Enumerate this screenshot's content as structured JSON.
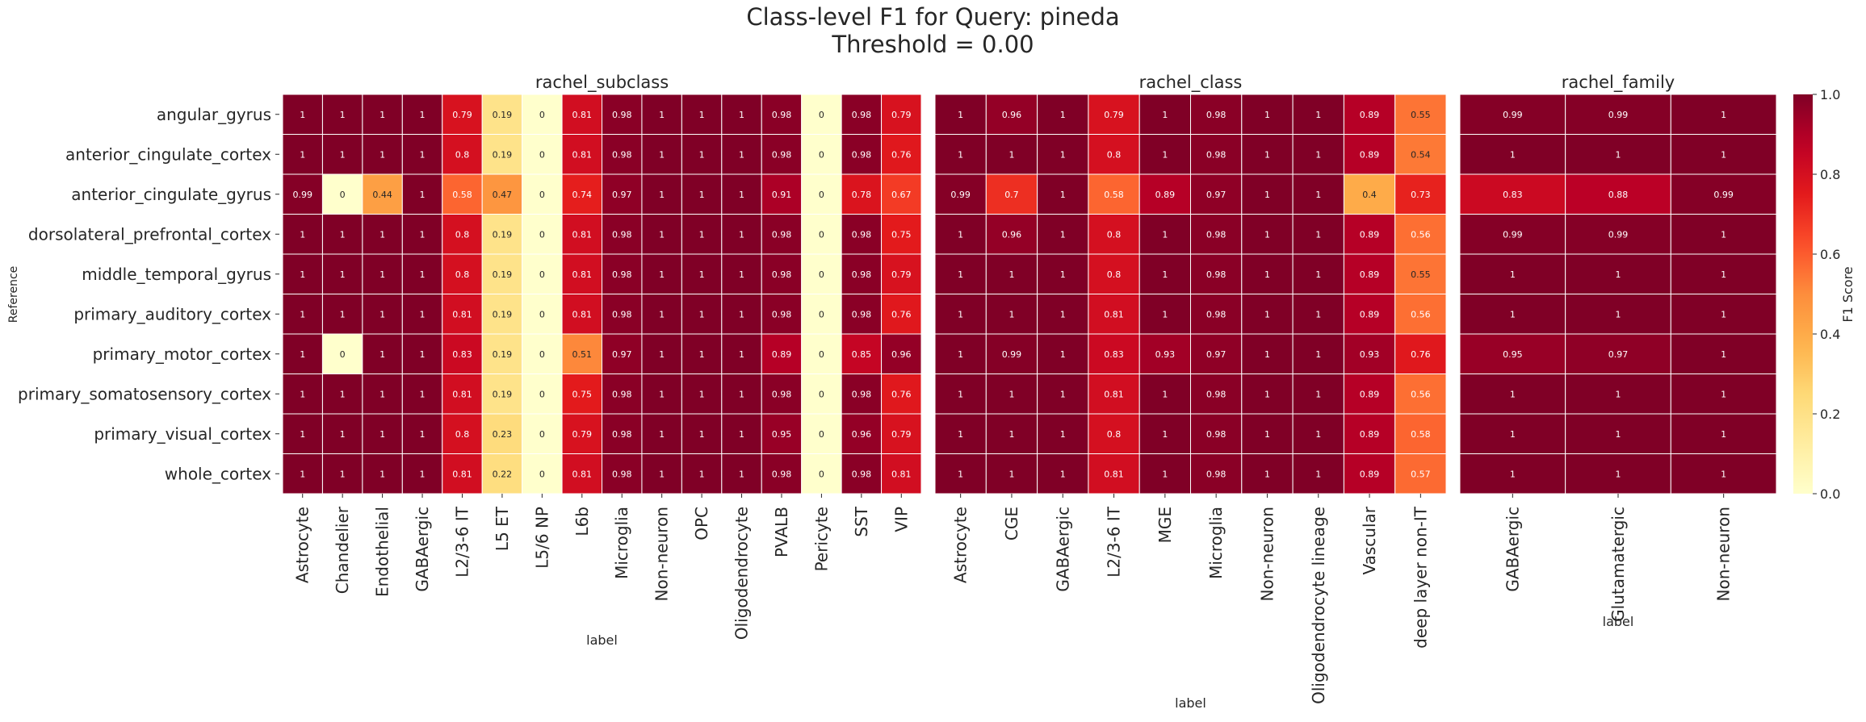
{
  "title_line1": "Class-level F1 for Query: pineda",
  "title_line2": "Threshold = 0.00",
  "ylabel": "Reference",
  "colorbar": {
    "label": "F1 Score",
    "ticks": [
      "0.0",
      "0.2",
      "0.4",
      "0.6",
      "0.8",
      "1.0"
    ],
    "colormap": "YlOrRd",
    "range": [
      0,
      1
    ]
  },
  "rows": [
    "angular_gyrus",
    "anterior_cingulate_cortex",
    "anterior_cingulate_gyrus",
    "dorsolateral_prefrontal_cortex",
    "middle_temporal_gyrus",
    "primary_auditory_cortex",
    "primary_motor_cortex",
    "primary_somatosensory_cortex",
    "primary_visual_cortex",
    "whole_cortex"
  ],
  "chart_data": [
    {
      "type": "heatmap",
      "title": "rachel_subclass",
      "xlabel": "label",
      "ylabel": "Reference",
      "categories": [
        "Astrocyte",
        "Chandelier",
        "Endothelial",
        "GABAergic",
        "L2/3-6 IT",
        "L5 ET",
        "L5/6 NP",
        "L6b",
        "Microglia",
        "Non-neuron",
        "OPC",
        "Oligodendrocyte",
        "PVALB",
        "Pericyte",
        "SST",
        "VIP"
      ],
      "values": [
        [
          1,
          1,
          1,
          1,
          0.79,
          0.19,
          0,
          0.81,
          0.98,
          1,
          1,
          1,
          0.98,
          0,
          0.98,
          0.79
        ],
        [
          1,
          1,
          1,
          1,
          0.8,
          0.19,
          0,
          0.81,
          0.98,
          1,
          1,
          1,
          0.98,
          0,
          0.98,
          0.76
        ],
        [
          0.99,
          0,
          0.44,
          1,
          0.58,
          0.47,
          0,
          0.74,
          0.97,
          1,
          1,
          1,
          0.91,
          0,
          0.78,
          0.67
        ],
        [
          1,
          1,
          1,
          1,
          0.8,
          0.19,
          0,
          0.81,
          0.98,
          1,
          1,
          1,
          0.98,
          0,
          0.98,
          0.75
        ],
        [
          1,
          1,
          1,
          1,
          0.8,
          0.19,
          0,
          0.81,
          0.98,
          1,
          1,
          1,
          0.98,
          0,
          0.98,
          0.79
        ],
        [
          1,
          1,
          1,
          1,
          0.81,
          0.19,
          0,
          0.81,
          0.98,
          1,
          1,
          1,
          0.98,
          0,
          0.98,
          0.76
        ],
        [
          1,
          0,
          1,
          1,
          0.83,
          0.19,
          0,
          0.51,
          0.97,
          1,
          1,
          1,
          0.89,
          0,
          0.85,
          0.96
        ],
        [
          1,
          1,
          1,
          1,
          0.81,
          0.19,
          0,
          0.75,
          0.98,
          1,
          1,
          1,
          0.98,
          0,
          0.98,
          0.76
        ],
        [
          1,
          1,
          1,
          1,
          0.8,
          0.23,
          0,
          0.79,
          0.98,
          1,
          1,
          1,
          0.95,
          0,
          0.96,
          0.79
        ],
        [
          1,
          1,
          1,
          1,
          0.81,
          0.22,
          0,
          0.81,
          0.98,
          1,
          1,
          1,
          0.98,
          0,
          0.98,
          0.81
        ]
      ]
    },
    {
      "type": "heatmap",
      "title": "rachel_class",
      "xlabel": "label",
      "categories": [
        "Astrocyte",
        "CGE",
        "GABAergic",
        "L2/3-6 IT",
        "MGE",
        "Microglia",
        "Non-neuron",
        "Oligodendrocyte lineage",
        "Vascular",
        "deep layer non-IT"
      ],
      "values": [
        [
          1,
          0.96,
          1,
          0.79,
          1,
          0.98,
          1,
          1,
          0.89,
          0.55
        ],
        [
          1,
          1,
          1,
          0.8,
          1,
          0.98,
          1,
          1,
          0.89,
          0.54
        ],
        [
          0.99,
          0.7,
          1,
          0.58,
          0.89,
          0.97,
          1,
          1,
          0.4,
          0.73
        ],
        [
          1,
          0.96,
          1,
          0.8,
          1,
          0.98,
          1,
          1,
          0.89,
          0.56
        ],
        [
          1,
          1,
          1,
          0.8,
          1,
          0.98,
          1,
          1,
          0.89,
          0.55
        ],
        [
          1,
          1,
          1,
          0.81,
          1,
          0.98,
          1,
          1,
          0.89,
          0.56
        ],
        [
          1,
          0.99,
          1,
          0.83,
          0.93,
          0.97,
          1,
          1,
          0.93,
          0.76
        ],
        [
          1,
          1,
          1,
          0.81,
          1,
          0.98,
          1,
          1,
          0.89,
          0.56
        ],
        [
          1,
          1,
          1,
          0.8,
          1,
          0.98,
          1,
          1,
          0.89,
          0.58
        ],
        [
          1,
          1,
          1,
          0.81,
          1,
          0.98,
          1,
          1,
          0.89,
          0.57
        ]
      ]
    },
    {
      "type": "heatmap",
      "title": "rachel_family",
      "xlabel": "label",
      "categories": [
        "GABAergic",
        "Glutamatergic",
        "Non-neuron"
      ],
      "values": [
        [
          0.99,
          0.99,
          1
        ],
        [
          1,
          1,
          1
        ],
        [
          0.83,
          0.88,
          0.99
        ],
        [
          0.99,
          0.99,
          1
        ],
        [
          1,
          1,
          1
        ],
        [
          1,
          1,
          1
        ],
        [
          0.95,
          0.97,
          1
        ],
        [
          1,
          1,
          1
        ],
        [
          1,
          1,
          1
        ],
        [
          1,
          1,
          1
        ]
      ]
    }
  ]
}
